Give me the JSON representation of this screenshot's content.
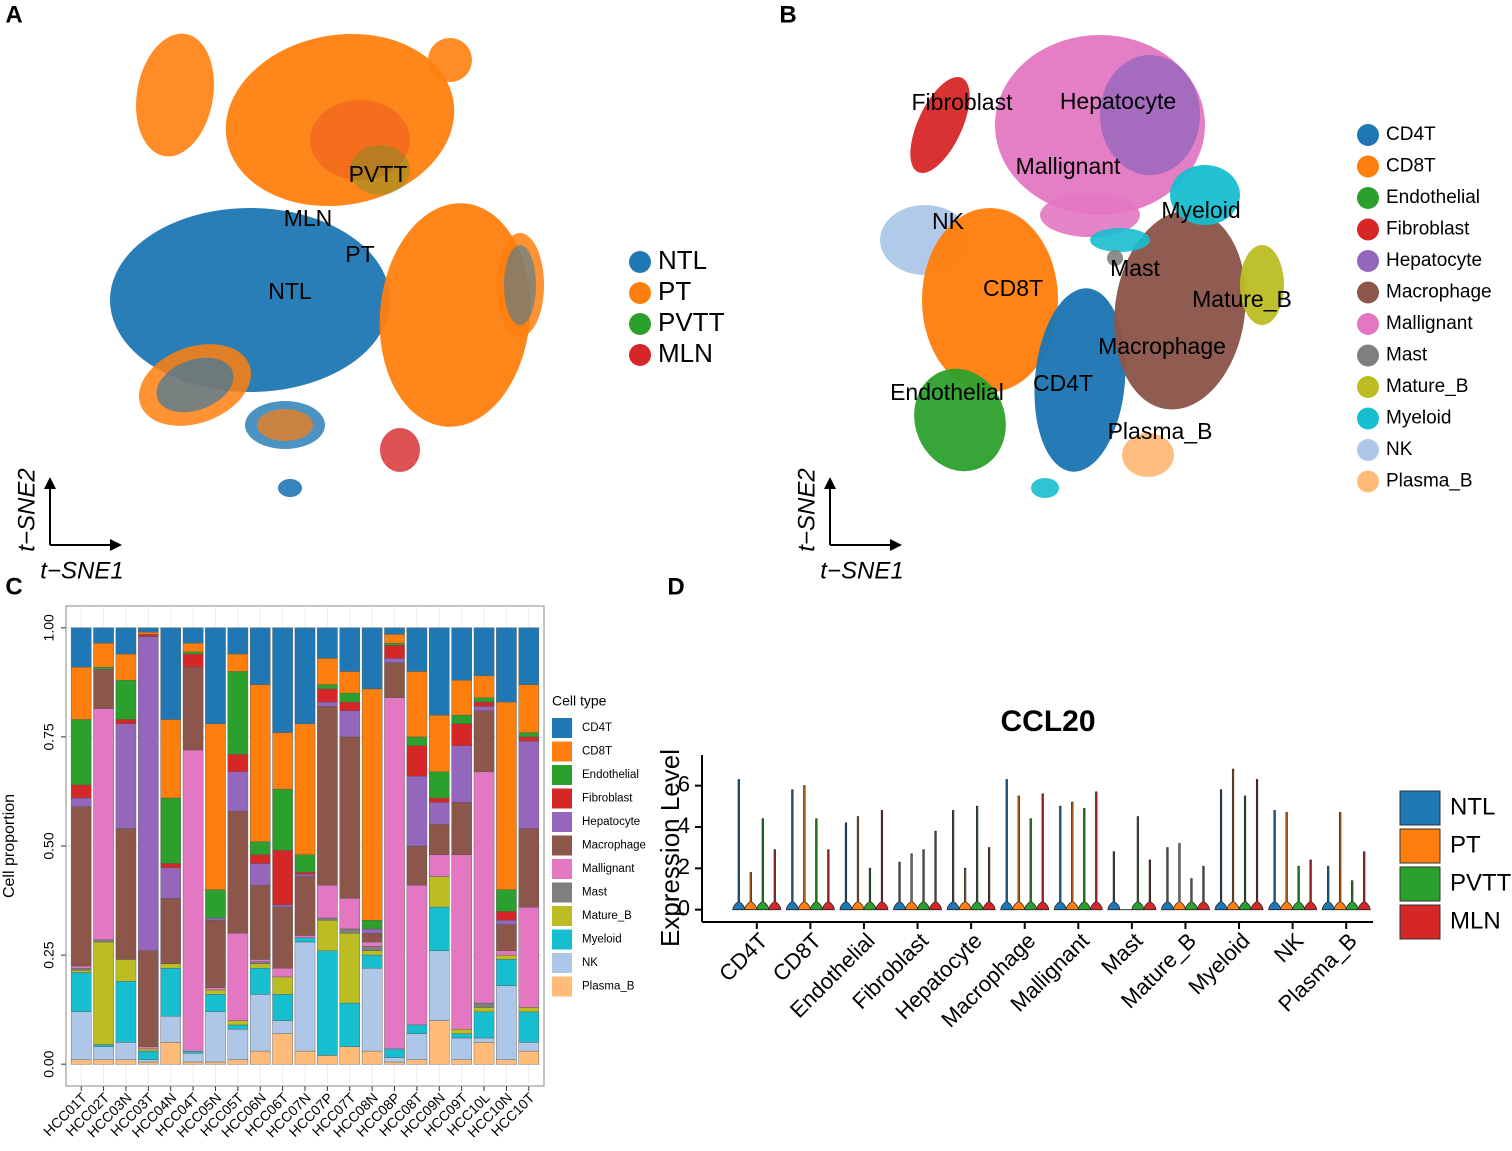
{
  "chart_data": [
    {
      "type": "tsne",
      "panel": "A",
      "xlabel": "t−SNE1",
      "ylabel": "t−SNE2",
      "series": [
        {
          "name": "NTL",
          "color": "#1f77b4"
        },
        {
          "name": "PT",
          "color": "#ff7f0e"
        },
        {
          "name": "PVTT",
          "color": "#2ca02c"
        },
        {
          "name": "MLN",
          "color": "#d62728"
        }
      ],
      "annotations": [
        "PVTT",
        "MLN",
        "PT",
        "NTL"
      ]
    },
    {
      "type": "tsne",
      "panel": "B",
      "xlabel": "t−SNE1",
      "ylabel": "t−SNE2",
      "series": [
        {
          "name": "CD4T",
          "color": "#1f77b4"
        },
        {
          "name": "CD8T",
          "color": "#ff7f0e"
        },
        {
          "name": "Endothelial",
          "color": "#2ca02c"
        },
        {
          "name": "Fibroblast",
          "color": "#d62728"
        },
        {
          "name": "Hepatocyte",
          "color": "#9467bd"
        },
        {
          "name": "Macrophage",
          "color": "#8c564b"
        },
        {
          "name": "Mallignant",
          "color": "#e377c2"
        },
        {
          "name": "Mast",
          "color": "#7f7f7f"
        },
        {
          "name": "Mature_B",
          "color": "#bcbd22"
        },
        {
          "name": "Myeloid",
          "color": "#17becf"
        },
        {
          "name": "NK",
          "color": "#aec7e8"
        },
        {
          "name": "Plasma_B",
          "color": "#ffbb78"
        }
      ],
      "annotations": [
        "Fibroblast",
        "Hepatocyte",
        "Mallignant",
        "Myeloid",
        "NK",
        "Mast",
        "CD8T",
        "Mature_B",
        "Macrophage",
        "CD4T",
        "Endothelial",
        "Plasma_B"
      ]
    },
    {
      "type": "stacked_bar",
      "panel": "C",
      "ylabel": "Cell proportion",
      "legend_title": "Cell type",
      "grid": true,
      "ylim": [
        -0.05,
        1.05
      ],
      "yticks": [
        {
          "value": 0,
          "label": "0.00"
        },
        0.25,
        {
          "value": 0.5,
          "label": "0.50"
        },
        0.75,
        {
          "value": 1,
          "label": "1.00"
        }
      ],
      "categories": [
        "HCC01T",
        "HCC02T",
        "HCC03N",
        "HCC03T",
        "HCC04N",
        "HCC04T",
        "HCC05N",
        "HCC05T",
        "HCC06N",
        "HCC06T",
        "HCC07N",
        "HCC07P",
        "HCC07T",
        "HCC08N",
        "HCC08P",
        "HCC08T",
        "HCC09N",
        "HCC09T",
        "HCC10L",
        "HCC10N",
        "HCC10T"
      ],
      "series": [
        {
          "name": "CD4T",
          "color": "#1f77b4",
          "values": [
            0.09,
            0.035,
            0.06,
            0.01,
            0.21,
            0.035,
            0.22,
            0.06,
            0.13,
            0.24,
            0.22,
            0.07,
            0.1,
            0.14,
            0.015,
            0.1,
            0.2,
            0.12,
            0.11,
            0.17,
            0.13
          ]
        },
        {
          "name": "CD8T",
          "color": "#ff7f0e",
          "values": [
            0.12,
            0.055,
            0.06,
            0.005,
            0.18,
            0.02,
            0.38,
            0.04,
            0.36,
            0.13,
            0.3,
            0.06,
            0.05,
            0.53,
            0.02,
            0.15,
            0.13,
            0.08,
            0.05,
            0.43,
            0.11
          ]
        },
        {
          "name": "Endothelial",
          "color": "#2ca02c",
          "values": [
            0.15,
            0.005,
            0.09,
            0,
            0.15,
            0.005,
            0.065,
            0.19,
            0.03,
            0.14,
            0.04,
            0.01,
            0.02,
            0.02,
            0.005,
            0.02,
            0.06,
            0.02,
            0.01,
            0.05,
            0.01
          ]
        },
        {
          "name": "Fibroblast",
          "color": "#d62728",
          "values": [
            0.03,
            0,
            0.01,
            0.005,
            0.01,
            0.03,
            0,
            0.04,
            0.02,
            0.125,
            0.005,
            0.03,
            0.02,
            0,
            0.03,
            0.07,
            0.01,
            0.05,
            0.01,
            0.02,
            0.01
          ]
        },
        {
          "name": "Hepatocyte",
          "color": "#9467bd",
          "values": [
            0.02,
            0,
            0.24,
            0.72,
            0.07,
            0,
            0.005,
            0.09,
            0.05,
            0.005,
            0.005,
            0.01,
            0.06,
            0.01,
            0.01,
            0.16,
            0.05,
            0.13,
            0.01,
            0.01,
            0.2
          ]
        },
        {
          "name": "Macrophage",
          "color": "#8c564b",
          "values": [
            0.365,
            0.09,
            0.3,
            0.22,
            0.15,
            0.19,
            0.155,
            0.28,
            0.17,
            0.14,
            0.135,
            0.41,
            0.37,
            0.02,
            0.08,
            0.09,
            0.07,
            0.12,
            0.14,
            0.06,
            0.18
          ]
        },
        {
          "name": "Mallignant",
          "color": "#e377c2",
          "values": [
            0.005,
            0.53,
            0,
            0.005,
            0,
            0.69,
            0.005,
            0.2,
            0.005,
            0.02,
            0.005,
            0.075,
            0.07,
            0.01,
            0.805,
            0.32,
            0.05,
            0.4,
            0.53,
            0.01,
            0.23
          ]
        },
        {
          "name": "Mast",
          "color": "#7f7f7f",
          "values": [
            0.005,
            0.005,
            0,
            0,
            0,
            0,
            0,
            0,
            0.005,
            0,
            0,
            0.005,
            0.01,
            0.01,
            0,
            0,
            0,
            0,
            0.01,
            0,
            0
          ]
        },
        {
          "name": "Mature_B",
          "color": "#bcbd22",
          "values": [
            0.005,
            0.235,
            0.05,
            0.005,
            0.01,
            0,
            0.01,
            0.01,
            0.01,
            0.04,
            0,
            0.07,
            0.16,
            0.01,
            0,
            0,
            0.07,
            0.01,
            0.01,
            0.01,
            0.01
          ]
        },
        {
          "name": "Myeloid",
          "color": "#17becf",
          "values": [
            0.09,
            0.005,
            0.14,
            0.02,
            0.11,
            0.005,
            0.04,
            0.01,
            0.06,
            0.06,
            0.01,
            0.24,
            0.1,
            0.03,
            0.02,
            0.02,
            0.1,
            0.01,
            0.06,
            0.06,
            0.07
          ]
        },
        {
          "name": "NK",
          "color": "#aec7e8",
          "values": [
            0.11,
            0.03,
            0.04,
            0.005,
            0.06,
            0.02,
            0.115,
            0.07,
            0.13,
            0.03,
            0.25,
            0,
            0,
            0.19,
            0.01,
            0.06,
            0.16,
            0.05,
            0.01,
            0.17,
            0.02
          ]
        },
        {
          "name": "Plasma_B",
          "color": "#ffbb78",
          "values": [
            0.01,
            0.01,
            0.01,
            0.005,
            0.05,
            0.005,
            0.005,
            0.01,
            0.03,
            0.07,
            0.03,
            0.02,
            0.04,
            0.03,
            0.005,
            0.01,
            0.1,
            0.01,
            0.05,
            0.01,
            0.03
          ]
        }
      ]
    },
    {
      "type": "violin",
      "panel": "D",
      "title": "CCL20",
      "ylabel": "Expression Level",
      "ylim": [
        -0.5,
        7
      ],
      "yticks": [
        0,
        2,
        4,
        6
      ],
      "categories": [
        "CD4T",
        "CD8T",
        "Endothelial",
        "Fibroblast",
        "Hepatocyte",
        "Macrophage",
        "Mallignant",
        "Mast",
        "Mature_B",
        "Myeloid",
        "NK",
        "Plasma_B"
      ],
      "series": [
        {
          "name": "NTL",
          "color": "#1f77b4",
          "values": [
            6.3,
            5.8,
            4.2,
            2.3,
            4.8,
            6.3,
            5.0,
            2.8,
            3.0,
            5.8,
            4.8,
            2.1
          ]
        },
        {
          "name": "PT",
          "color": "#ff7f0e",
          "values": [
            1.8,
            6.0,
            4.5,
            2.7,
            2.0,
            5.5,
            5.2,
            0,
            3.2,
            6.8,
            4.7,
            4.7
          ]
        },
        {
          "name": "PVTT",
          "color": "#2ca02c",
          "values": [
            4.4,
            4.4,
            2.0,
            2.9,
            5.0,
            4.4,
            4.9,
            4.5,
            1.5,
            5.5,
            2.1,
            1.4
          ]
        },
        {
          "name": "MLN",
          "color": "#d62728",
          "values": [
            2.9,
            2.9,
            4.8,
            3.8,
            3.0,
            5.6,
            5.7,
            2.4,
            2.1,
            6.3,
            2.4,
            2.8
          ]
        }
      ]
    }
  ]
}
